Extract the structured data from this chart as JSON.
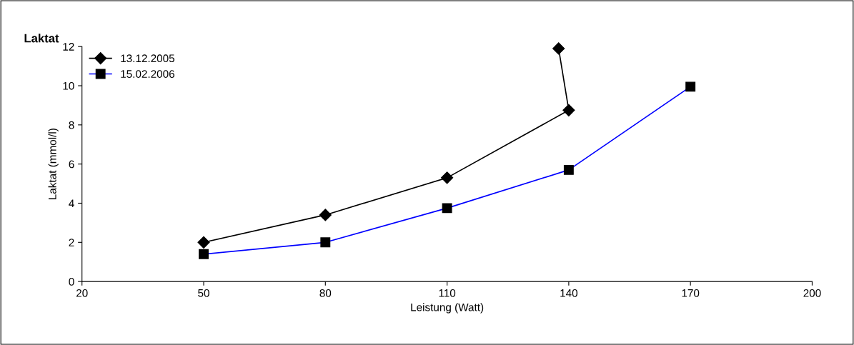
{
  "chart_data": {
    "type": "line",
    "title": "Laktat",
    "xlabel": "Leistung (Watt)",
    "ylabel": "Laktat (mmol/l)",
    "xlim": [
      20,
      200
    ],
    "xticks": [
      20,
      50,
      80,
      110,
      140,
      170,
      200
    ],
    "ylim": [
      0,
      12
    ],
    "yticks": [
      0,
      2,
      4,
      6,
      8,
      10,
      12
    ],
    "grid": false,
    "legend": "top left",
    "line_style": "solid",
    "series": [
      {
        "name": "13.12.2005",
        "color": "#000000",
        "marker": "diamond",
        "x": [
          50,
          80,
          110,
          140,
          137.5
        ],
        "values": [
          2.0,
          3.4,
          5.3,
          8.75,
          11.9
        ]
      },
      {
        "name": "15.02.2006",
        "color": "#0000ff",
        "marker": "square",
        "x": [
          50,
          80,
          110,
          140,
          170
        ],
        "values": [
          1.4,
          2.0,
          3.75,
          5.7,
          9.95
        ]
      }
    ]
  }
}
